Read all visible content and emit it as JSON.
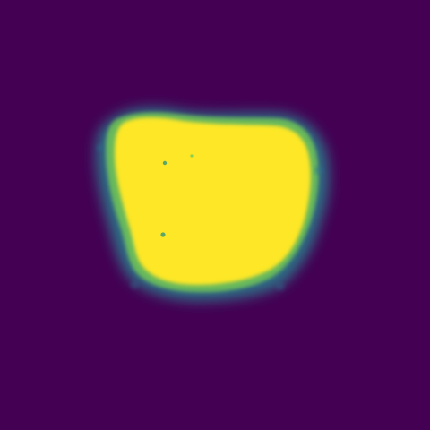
{
  "image": {
    "colormap": "viridis",
    "colors": {
      "background": "#440154",
      "foreground": "#fde725",
      "edge_low": "#3b528b",
      "edge_mid": "#21918c",
      "edge_high": "#5ec962"
    }
  }
}
